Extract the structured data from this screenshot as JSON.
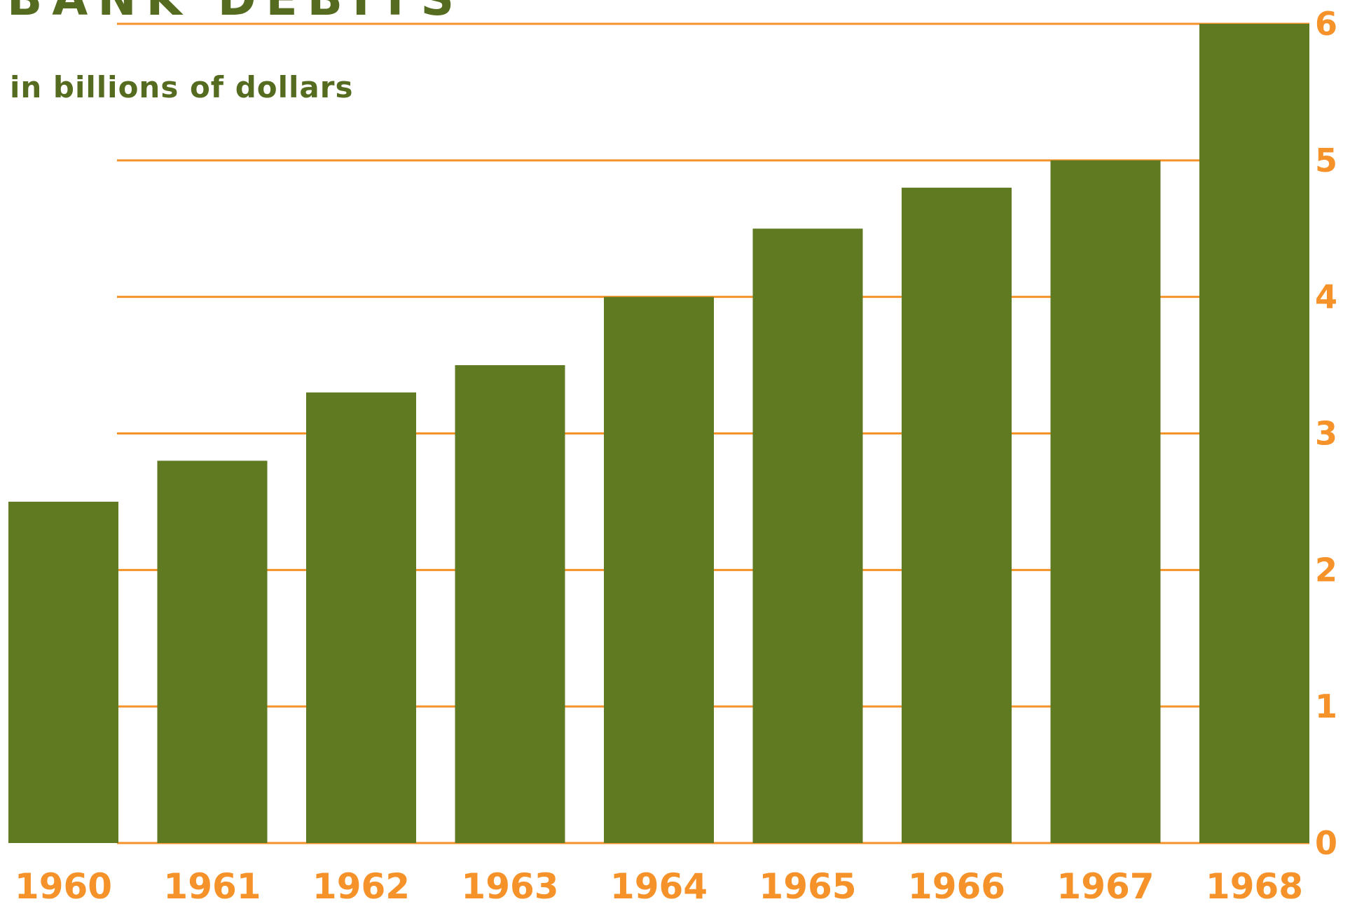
{
  "chart_data": {
    "type": "bar",
    "title": "BANK DEBITS",
    "subtitle": "in billions of dollars",
    "categories": [
      "1960",
      "1961",
      "1962",
      "1963",
      "1964",
      "1965",
      "1966",
      "1967",
      "1968"
    ],
    "values": [
      2.5,
      2.8,
      3.3,
      3.5,
      4.0,
      4.5,
      4.8,
      5.0,
      6.0
    ],
    "xlabel": "",
    "ylabel": "",
    "ylim": [
      0,
      6
    ],
    "yticks": [
      "0",
      "1",
      "2",
      "3",
      "4",
      "5",
      "6"
    ],
    "y_axis_side": "right",
    "grid": true,
    "legend": "none",
    "colors": {
      "bar": "#607a22",
      "gridline": "#f5922a",
      "tick_label": "#f5922a",
      "title": "#556b1f"
    }
  }
}
